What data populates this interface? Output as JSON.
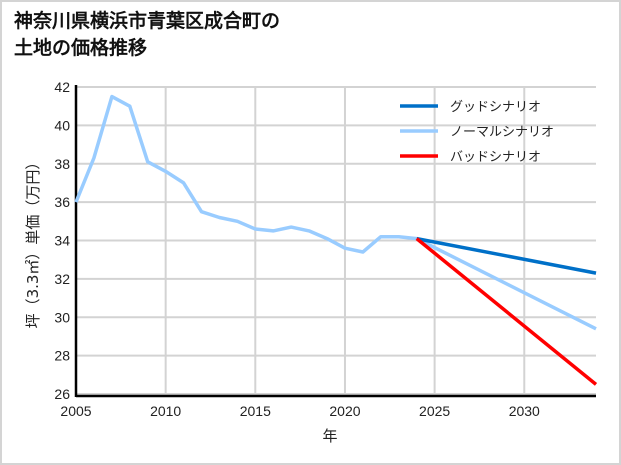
{
  "title_line1": "神奈川県横浜市青葉区成合町の",
  "title_line2": "土地の価格推移",
  "chart_data": {
    "type": "line",
    "title": "神奈川県横浜市青葉区成合町の土地の価格推移",
    "xlabel": "年",
    "ylabel": "坪（3.3㎡）単価（万円）",
    "xlim": [
      2005,
      2034
    ],
    "ylim": [
      26,
      42
    ],
    "x_ticks": [
      2005,
      2010,
      2015,
      2020,
      2025,
      2030
    ],
    "y_ticks": [
      26,
      28,
      30,
      32,
      34,
      36,
      38,
      40,
      42
    ],
    "grid": true,
    "legend_position": "upper right",
    "series": [
      {
        "name": "グッドシナリオ",
        "color": "#0070c8",
        "x": [
          2024,
          2034
        ],
        "values": [
          34.1,
          32.3
        ]
      },
      {
        "name": "ノーマルシナリオ",
        "color": "#99ccff",
        "x": [
          2005,
          2006,
          2007,
          2008,
          2009,
          2010,
          2011,
          2012,
          2013,
          2014,
          2015,
          2016,
          2017,
          2018,
          2019,
          2020,
          2021,
          2022,
          2023,
          2024,
          2034
        ],
        "values": [
          36.0,
          38.3,
          41.5,
          41.0,
          38.1,
          37.6,
          37.0,
          35.5,
          35.2,
          35.0,
          34.6,
          34.5,
          34.7,
          34.5,
          34.1,
          33.6,
          33.4,
          34.2,
          34.2,
          34.1,
          29.4
        ]
      },
      {
        "name": "バッドシナリオ",
        "color": "#ff0000",
        "x": [
          2024,
          2034
        ],
        "values": [
          34.1,
          26.5
        ]
      }
    ]
  }
}
